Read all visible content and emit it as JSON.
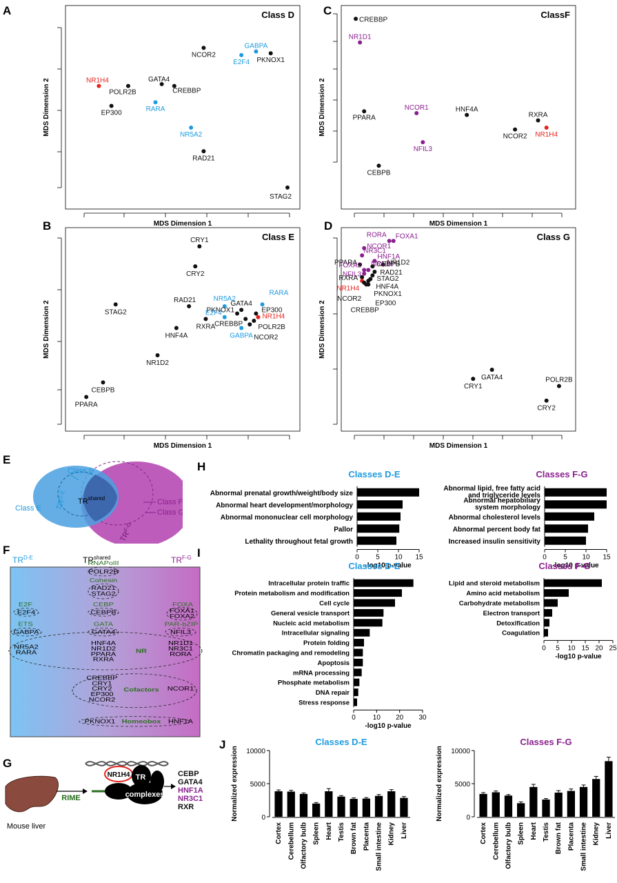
{
  "panels": {
    "A": {
      "letter": "A",
      "class_label": "Class D",
      "xlabel": "MDS Dimension 1",
      "ylabel": "MDS Dimension 2",
      "points": [
        {
          "label": "NCOR2",
          "x": 0.6,
          "y": 0.82,
          "color": "black"
        },
        {
          "label": "GABPA",
          "x": 0.85,
          "y": 0.8,
          "color": "blue"
        },
        {
          "label": "E2F4",
          "x": 0.78,
          "y": 0.78,
          "color": "blue"
        },
        {
          "label": "PKNOX1",
          "x": 0.92,
          "y": 0.79,
          "color": "black"
        },
        {
          "label": "NR1H4",
          "x": 0.1,
          "y": 0.61,
          "color": "red"
        },
        {
          "label": "GATA4",
          "x": 0.4,
          "y": 0.62,
          "color": "black"
        },
        {
          "label": "POLR2B",
          "x": 0.24,
          "y": 0.61,
          "color": "black"
        },
        {
          "label": "CREBBP",
          "x": 0.46,
          "y": 0.61,
          "color": "black"
        },
        {
          "label": "EP300",
          "x": 0.16,
          "y": 0.5,
          "color": "black"
        },
        {
          "label": "RARA",
          "x": 0.37,
          "y": 0.52,
          "color": "blue"
        },
        {
          "label": "NR5A2",
          "x": 0.54,
          "y": 0.38,
          "color": "blue"
        },
        {
          "label": "RAD21",
          "x": 0.6,
          "y": 0.25,
          "color": "black"
        },
        {
          "label": "STAG2",
          "x": 1.0,
          "y": 0.05,
          "color": "black"
        }
      ]
    },
    "B": {
      "letter": "B",
      "class_label": "Class E",
      "xlabel": "MDS Dimension 1",
      "ylabel": "MDS Dimension 2",
      "points": [
        {
          "label": "CRY1",
          "x": 0.58,
          "y": 0.95,
          "color": "black"
        },
        {
          "label": "CRY2",
          "x": 0.56,
          "y": 0.84,
          "color": "black"
        },
        {
          "label": "STAG2",
          "x": 0.18,
          "y": 0.63,
          "color": "black"
        },
        {
          "label": "RAD21",
          "x": 0.53,
          "y": 0.62,
          "color": "black"
        },
        {
          "label": "NR5A2",
          "x": 0.7,
          "y": 0.62,
          "color": "blue"
        },
        {
          "label": "RARA",
          "x": 0.88,
          "y": 0.63,
          "color": "blue"
        },
        {
          "label": "GATA4",
          "x": 0.78,
          "y": 0.6,
          "color": "black"
        },
        {
          "label": "PKNOX1",
          "x": 0.76,
          "y": 0.58,
          "color": "black"
        },
        {
          "label": "EP300",
          "x": 0.85,
          "y": 0.58,
          "color": "black"
        },
        {
          "label": "E2F4",
          "x": 0.7,
          "y": 0.56,
          "color": "blue"
        },
        {
          "label": "NR1H4",
          "x": 0.86,
          "y": 0.56,
          "color": "red"
        },
        {
          "label": "RXRA",
          "x": 0.61,
          "y": 0.55,
          "color": "black"
        },
        {
          "label": "CREBBP",
          "x": 0.8,
          "y": 0.55,
          "color": "black"
        },
        {
          "label": "POLR2B",
          "x": 0.84,
          "y": 0.54,
          "color": "black"
        },
        {
          "label": "HNF4A",
          "x": 0.47,
          "y": 0.5,
          "color": "black"
        },
        {
          "label": "NCOR2",
          "x": 0.82,
          "y": 0.52,
          "color": "black"
        },
        {
          "label": "GABPA",
          "x": 0.78,
          "y": 0.5,
          "color": "blue"
        },
        {
          "label": "NR1D2",
          "x": 0.38,
          "y": 0.35,
          "color": "black"
        },
        {
          "label": "CEBPB",
          "x": 0.12,
          "y": 0.2,
          "color": "black"
        },
        {
          "label": "PPARA",
          "x": 0.04,
          "y": 0.12,
          "color": "black"
        }
      ]
    },
    "C": {
      "letter": "C",
      "class_label": "ClassF",
      "xlabel": "MDS Dimension 1",
      "ylabel": "MDS Dimension 2",
      "points": [
        {
          "label": "CREBBP",
          "x": 0.01,
          "y": 0.98,
          "color": "black"
        },
        {
          "label": "NR1D1",
          "x": 0.03,
          "y": 0.85,
          "color": "purple"
        },
        {
          "label": "PPARA",
          "x": 0.05,
          "y": 0.47,
          "color": "black"
        },
        {
          "label": "NCOR1",
          "x": 0.3,
          "y": 0.46,
          "color": "purple"
        },
        {
          "label": "HNF4A",
          "x": 0.54,
          "y": 0.45,
          "color": "black"
        },
        {
          "label": "RXRA",
          "x": 0.88,
          "y": 0.42,
          "color": "black"
        },
        {
          "label": "NR1H4",
          "x": 0.92,
          "y": 0.38,
          "color": "red"
        },
        {
          "label": "NCOR2",
          "x": 0.77,
          "y": 0.37,
          "color": "black"
        },
        {
          "label": "NFIL3",
          "x": 0.33,
          "y": 0.3,
          "color": "purple"
        },
        {
          "label": "CEBPB",
          "x": 0.12,
          "y": 0.17,
          "color": "black"
        }
      ]
    },
    "D": {
      "letter": "D",
      "class_label": "Class G",
      "xlabel": "MDS Dimension 1",
      "ylabel": "MDS Dimension 2",
      "points": [
        {
          "label": "RORA",
          "x": 0.17,
          "y": 0.98,
          "color": "purple"
        },
        {
          "label": "FOXA1",
          "x": 0.19,
          "y": 0.98,
          "color": "purple"
        },
        {
          "label": "NCOR1",
          "x": 0.05,
          "y": 0.94,
          "color": "purple"
        },
        {
          "label": "NR3C1",
          "x": 0.04,
          "y": 0.9,
          "color": "purple"
        },
        {
          "label": "HNF1A",
          "x": 0.1,
          "y": 0.87,
          "color": "purple"
        },
        {
          "label": "PPARA",
          "x": 0.03,
          "y": 0.85,
          "color": "black"
        },
        {
          "label": "CEBPB",
          "x": 0.09,
          "y": 0.84,
          "color": "black"
        },
        {
          "label": "NR1D2",
          "x": 0.14,
          "y": 0.85,
          "color": "black"
        },
        {
          "label": "FOXA2",
          "x": 0.05,
          "y": 0.82,
          "color": "purple"
        },
        {
          "label": "NR1D1",
          "x": 0.07,
          "y": 0.82,
          "color": "purple"
        },
        {
          "label": "NFIL3",
          "x": 0.05,
          "y": 0.8,
          "color": "purple"
        },
        {
          "label": "RAD21",
          "x": 0.1,
          "y": 0.81,
          "color": "black"
        },
        {
          "label": "STAG2",
          "x": 0.09,
          "y": 0.79,
          "color": "black"
        },
        {
          "label": "RXRA",
          "x": 0.04,
          "y": 0.78,
          "color": "black"
        },
        {
          "label": "HNF4A",
          "x": 0.08,
          "y": 0.77,
          "color": "black"
        },
        {
          "label": "NR1H4",
          "x": 0.04,
          "y": 0.76,
          "color": "red"
        },
        {
          "label": "PKNOX1",
          "x": 0.07,
          "y": 0.76,
          "color": "black"
        },
        {
          "label": "NCOR2",
          "x": 0.05,
          "y": 0.75,
          "color": "black"
        },
        {
          "label": "EP300",
          "x": 0.07,
          "y": 0.74,
          "color": "black"
        },
        {
          "label": "CREBBP",
          "x": 0.06,
          "y": 0.74,
          "color": "black"
        },
        {
          "label": "GATA4",
          "x": 0.66,
          "y": 0.27,
          "color": "black"
        },
        {
          "label": "CRY1",
          "x": 0.57,
          "y": 0.22,
          "color": "black"
        },
        {
          "label": "POLR2B",
          "x": 0.98,
          "y": 0.18,
          "color": "black"
        },
        {
          "label": "CRY2",
          "x": 0.92,
          "y": 0.1,
          "color": "black"
        }
      ]
    },
    "E": {
      "letter": "E",
      "class_d": "Class D",
      "class_e": "Class E",
      "class_f": "Class F",
      "class_g": "Class G",
      "tr_de": "TR",
      "tr_de_sup": "D-E",
      "tr_shared": "TR",
      "tr_shared_sup": "shared",
      "tr_fg": "TR",
      "tr_fg_sup": "F-G"
    },
    "F": {
      "letter": "F",
      "header_de": "TR",
      "header_de_sup": "D-E",
      "header_shared": "TR",
      "header_shared_sup": "shared",
      "header_fg": "TR",
      "header_fg_sup": "F-G",
      "groups": [
        {
          "title": "RNAPolII",
          "members": [
            "POLR2B"
          ]
        },
        {
          "title": "Cohesin",
          "members": [
            "RAD21",
            "STAG2"
          ]
        },
        {
          "title": "E2F",
          "members": [
            "E2F4"
          ]
        },
        {
          "title": "CEBP",
          "members": [
            "CEBPB"
          ]
        },
        {
          "title": "FOXA",
          "members": [
            "FOXA1",
            "FOXA2"
          ]
        },
        {
          "title": "ETS",
          "members": [
            "GABPA"
          ]
        },
        {
          "title": "GATA",
          "members": [
            "GATA4"
          ]
        },
        {
          "title": "PAR-bZIP",
          "members": [
            "NFIL3"
          ]
        },
        {
          "title": "NR",
          "members": [
            "NR5A2",
            "RARA",
            "HNF4A",
            "NR1D2",
            "PPARA",
            "RXRA",
            "NR1D1",
            "NR3C1",
            "RORA"
          ]
        },
        {
          "title": "Cofactors",
          "members": [
            "CREBBP",
            "CRY1",
            "CRY2",
            "EP300",
            "NCOR2",
            "NCOR1"
          ]
        },
        {
          "title": "Homeobox",
          "members": [
            "PKNOX1",
            "HNF1A"
          ]
        }
      ]
    },
    "G": {
      "letter": "G",
      "liver_label": "Mouse liver",
      "rime": "RIME",
      "target": "NR1H4",
      "tr": "TR",
      "complexes": "complexes",
      "list": [
        {
          "t": "CEBP",
          "c": "black"
        },
        {
          "t": "GATA4",
          "c": "black"
        },
        {
          "t": "HNF1A",
          "c": "purple"
        },
        {
          "t": "NR3C1",
          "c": "purple"
        },
        {
          "t": "RXR",
          "c": "black"
        }
      ]
    },
    "H": {
      "letter": "H"
    },
    "I": {
      "letter": "I"
    },
    "J": {
      "letter": "J"
    }
  },
  "colors": {
    "black": "#111111",
    "blue": "#1e9be0",
    "red": "#e3231b",
    "purple": "#8a1f8e",
    "green": "#2a6e1f",
    "barfill": "#000000"
  },
  "chart_data": [
    {
      "id": "H-left",
      "type": "bar",
      "orientation": "horizontal",
      "title": "Classes D-E",
      "xlabel": "-log10 p-value",
      "xlim": [
        0,
        15
      ],
      "xticks": [
        0,
        5,
        10,
        15
      ],
      "categories": [
        "Abnormal prenatal growth/weight/body size",
        "Abnormal heart development/morphology",
        "Abnormal mononuclear cell morphology",
        "Pallor",
        "Lethality throughout fetal growth"
      ],
      "values": [
        15,
        11,
        10.5,
        10.2,
        9.5
      ]
    },
    {
      "id": "H-right",
      "type": "bar",
      "orientation": "horizontal",
      "title": "Classes F-G",
      "xlabel": "-log10 p-value",
      "xlim": [
        0,
        15
      ],
      "xticks": [
        0,
        5,
        10,
        15
      ],
      "categories": [
        "Abnormal lipid, free fatty acid and triglyceride levels",
        "Abnormal hepatobiliary system morphology",
        "Abnormal cholesterol levels",
        "Abnormal percent body fat",
        "Increased insulin sensitivity"
      ],
      "values": [
        15,
        15,
        12,
        10.5,
        10
      ]
    },
    {
      "id": "I-left",
      "type": "bar",
      "orientation": "horizontal",
      "title": "Classes D-E",
      "xlabel": "-log10 p-value",
      "xlim": [
        0,
        30
      ],
      "xticks": [
        0,
        10,
        20,
        30
      ],
      "categories": [
        "Intracellular protein traffic",
        "Protein metabolism and modification",
        "Cell cycle",
        "General vesicle transport",
        "Nucleic acid metabolism",
        "Intracellular signaling",
        "Protein folding",
        "Chromatin packaging and remodeling",
        "Apoptosis",
        "mRNA processing",
        "Phosphate metabolism",
        "DNA repair",
        "Stress response"
      ],
      "values": [
        26,
        21,
        18,
        13,
        12.5,
        7,
        4.5,
        4,
        4,
        3.5,
        2.5,
        2,
        1.5
      ]
    },
    {
      "id": "I-right",
      "type": "bar",
      "orientation": "horizontal",
      "title": "Classes F-G",
      "xlabel": "-log10 p-value",
      "xlim": [
        0,
        25
      ],
      "xticks": [
        0,
        5,
        10,
        15,
        20,
        25
      ],
      "categories": [
        "Lipid and steroid metabolism",
        "Amino acid metabolism",
        "Carbohydrate metabolism",
        "Electron transport",
        "Detoxification",
        "Coagulation"
      ],
      "values": [
        21,
        9,
        5,
        3,
        2,
        1.5
      ]
    },
    {
      "id": "J-left",
      "type": "bar",
      "orientation": "vertical",
      "title": "Classes D-E",
      "ylabel": "Normalized expression",
      "ylim": [
        0,
        10000
      ],
      "yticks": [
        0,
        5000,
        10000
      ],
      "categories": [
        "Cortex",
        "Cerebellum",
        "Olfactory bulb",
        "Spleen",
        "Heart",
        "Testis",
        "Brown fat",
        "Placenta",
        "Small intestine",
        "Kidney",
        "Liver"
      ],
      "values": [
        3850,
        3800,
        3450,
        2000,
        3850,
        3050,
        2700,
        2750,
        3150,
        3850,
        2850
      ],
      "errors": [
        200,
        200,
        150,
        150,
        400,
        150,
        150,
        150,
        200,
        250,
        200
      ]
    },
    {
      "id": "J-right",
      "type": "bar",
      "orientation": "vertical",
      "title": "Classes F-G",
      "ylabel": "Normalized expression",
      "ylim": [
        0,
        10000
      ],
      "yticks": [
        0,
        5000,
        10000
      ],
      "categories": [
        "Cortex",
        "Cerebellum",
        "Olfactory bulb",
        "Spleen",
        "Heart",
        "Testis",
        "Brown fat",
        "Placenta",
        "Small intestine",
        "Kidney",
        "Liver"
      ],
      "values": [
        3450,
        3700,
        3200,
        2050,
        4500,
        2600,
        3650,
        3900,
        4500,
        5700,
        8400
      ],
      "errors": [
        200,
        200,
        150,
        200,
        400,
        150,
        300,
        300,
        300,
        400,
        600
      ]
    }
  ]
}
